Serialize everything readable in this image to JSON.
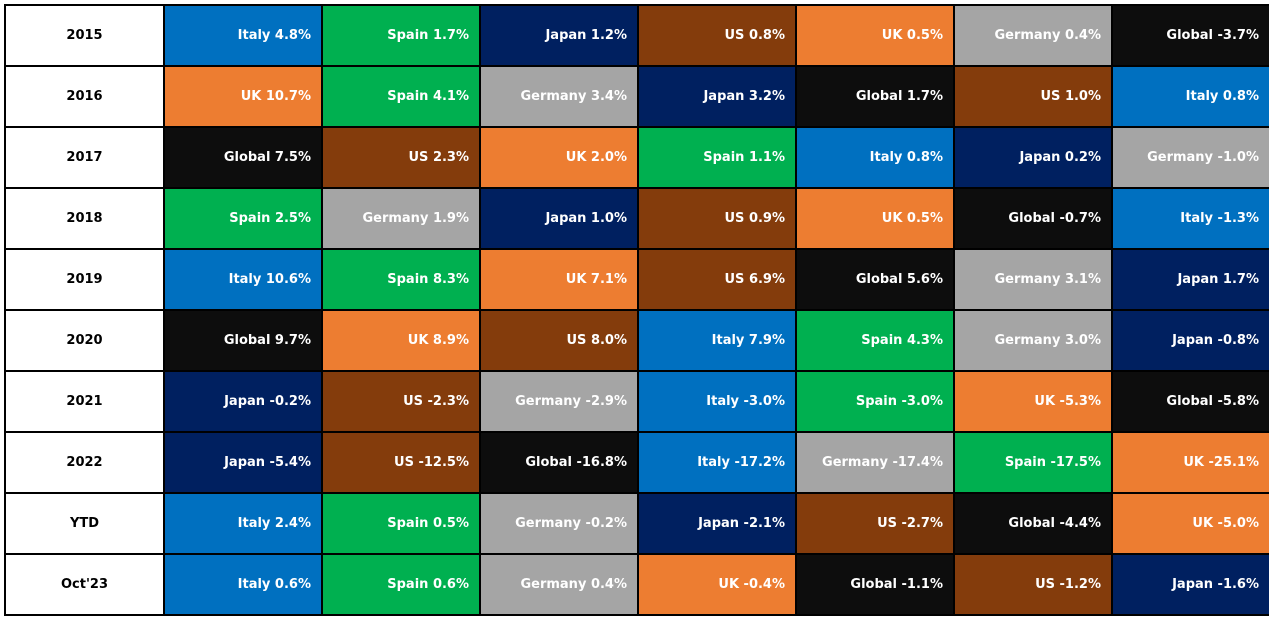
{
  "colors": {
    "Italy": "#0070c0",
    "Spain": "#00b050",
    "Japan": "#002060",
    "US": "#843c0c",
    "UK": "#ed7d31",
    "Germany": "#a5a5a5",
    "Global": "#0d0d0d"
  },
  "chart_data": {
    "type": "table",
    "title": "",
    "rows": [
      {
        "label": "2015",
        "cells": [
          {
            "name": "Italy",
            "value": 4.8,
            "text": "Italy 4.8%"
          },
          {
            "name": "Spain",
            "value": 1.7,
            "text": "Spain 1.7%"
          },
          {
            "name": "Japan",
            "value": 1.2,
            "text": "Japan 1.2%"
          },
          {
            "name": "US",
            "value": 0.8,
            "text": "US 0.8%"
          },
          {
            "name": "UK",
            "value": 0.5,
            "text": "UK 0.5%"
          },
          {
            "name": "Germany",
            "value": 0.4,
            "text": "Germany 0.4%"
          },
          {
            "name": "Global",
            "value": -3.7,
            "text": "Global -3.7%"
          }
        ]
      },
      {
        "label": "2016",
        "cells": [
          {
            "name": "UK",
            "value": 10.7,
            "text": "UK 10.7%"
          },
          {
            "name": "Spain",
            "value": 4.1,
            "text": "Spain 4.1%"
          },
          {
            "name": "Germany",
            "value": 3.4,
            "text": "Germany 3.4%"
          },
          {
            "name": "Japan",
            "value": 3.2,
            "text": "Japan 3.2%"
          },
          {
            "name": "Global",
            "value": 1.7,
            "text": "Global 1.7%"
          },
          {
            "name": "US",
            "value": 1.0,
            "text": "US 1.0%"
          },
          {
            "name": "Italy",
            "value": 0.8,
            "text": "Italy 0.8%"
          }
        ]
      },
      {
        "label": "2017",
        "cells": [
          {
            "name": "Global",
            "value": 7.5,
            "text": "Global 7.5%"
          },
          {
            "name": "US",
            "value": 2.3,
            "text": "US 2.3%"
          },
          {
            "name": "UK",
            "value": 2.0,
            "text": "UK 2.0%"
          },
          {
            "name": "Spain",
            "value": 1.1,
            "text": "Spain 1.1%"
          },
          {
            "name": "Italy",
            "value": 0.8,
            "text": "Italy 0.8%"
          },
          {
            "name": "Japan",
            "value": 0.2,
            "text": "Japan 0.2%"
          },
          {
            "name": "Germany",
            "value": -1.0,
            "text": "Germany -1.0%"
          }
        ]
      },
      {
        "label": "2018",
        "cells": [
          {
            "name": "Spain",
            "value": 2.5,
            "text": "Spain 2.5%"
          },
          {
            "name": "Germany",
            "value": 1.9,
            "text": "Germany 1.9%"
          },
          {
            "name": "Japan",
            "value": 1.0,
            "text": "Japan 1.0%"
          },
          {
            "name": "US",
            "value": 0.9,
            "text": "US 0.9%"
          },
          {
            "name": "UK",
            "value": 0.5,
            "text": "UK 0.5%"
          },
          {
            "name": "Global",
            "value": -0.7,
            "text": "Global -0.7%"
          },
          {
            "name": "Italy",
            "value": -1.3,
            "text": "Italy -1.3%"
          }
        ]
      },
      {
        "label": "2019",
        "cells": [
          {
            "name": "Italy",
            "value": 10.6,
            "text": "Italy 10.6%"
          },
          {
            "name": "Spain",
            "value": 8.3,
            "text": "Spain 8.3%"
          },
          {
            "name": "UK",
            "value": 7.1,
            "text": "UK 7.1%"
          },
          {
            "name": "US",
            "value": 6.9,
            "text": "US 6.9%"
          },
          {
            "name": "Global",
            "value": 5.6,
            "text": "Global 5.6%"
          },
          {
            "name": "Germany",
            "value": 3.1,
            "text": "Germany 3.1%"
          },
          {
            "name": "Japan",
            "value": 1.7,
            "text": "Japan 1.7%"
          }
        ]
      },
      {
        "label": "2020",
        "cells": [
          {
            "name": "Global",
            "value": 9.7,
            "text": "Global 9.7%"
          },
          {
            "name": "UK",
            "value": 8.9,
            "text": "UK 8.9%"
          },
          {
            "name": "US",
            "value": 8.0,
            "text": "US 8.0%"
          },
          {
            "name": "Italy",
            "value": 7.9,
            "text": "Italy 7.9%"
          },
          {
            "name": "Spain",
            "value": 4.3,
            "text": "Spain 4.3%"
          },
          {
            "name": "Germany",
            "value": 3.0,
            "text": "Germany 3.0%"
          },
          {
            "name": "Japan",
            "value": -0.8,
            "text": "Japan -0.8%"
          }
        ]
      },
      {
        "label": "2021",
        "cells": [
          {
            "name": "Japan",
            "value": -0.2,
            "text": "Japan -0.2%"
          },
          {
            "name": "US",
            "value": -2.3,
            "text": "US -2.3%"
          },
          {
            "name": "Germany",
            "value": -2.9,
            "text": "Germany -2.9%"
          },
          {
            "name": "Italy",
            "value": -3.0,
            "text": "Italy -3.0%"
          },
          {
            "name": "Spain",
            "value": -3.0,
            "text": "Spain -3.0%"
          },
          {
            "name": "UK",
            "value": -5.3,
            "text": "UK -5.3%"
          },
          {
            "name": "Global",
            "value": -5.8,
            "text": "Global -5.8%"
          }
        ]
      },
      {
        "label": "2022",
        "cells": [
          {
            "name": "Japan",
            "value": -5.4,
            "text": "Japan -5.4%"
          },
          {
            "name": "US",
            "value": -12.5,
            "text": "US -12.5%"
          },
          {
            "name": "Global",
            "value": -16.8,
            "text": "Global -16.8%"
          },
          {
            "name": "Italy",
            "value": -17.2,
            "text": "Italy -17.2%"
          },
          {
            "name": "Germany",
            "value": -17.4,
            "text": "Germany -17.4%"
          },
          {
            "name": "Spain",
            "value": -17.5,
            "text": "Spain -17.5%"
          },
          {
            "name": "UK",
            "value": -25.1,
            "text": "UK -25.1%"
          }
        ]
      },
      {
        "label": "YTD",
        "cells": [
          {
            "name": "Italy",
            "value": 2.4,
            "text": "Italy 2.4%"
          },
          {
            "name": "Spain",
            "value": 0.5,
            "text": "Spain 0.5%"
          },
          {
            "name": "Germany",
            "value": -0.2,
            "text": "Germany -0.2%"
          },
          {
            "name": "Japan",
            "value": -2.1,
            "text": "Japan -2.1%"
          },
          {
            "name": "US",
            "value": -2.7,
            "text": "US -2.7%"
          },
          {
            "name": "Global",
            "value": -4.4,
            "text": "Global -4.4%"
          },
          {
            "name": "UK",
            "value": -5.0,
            "text": "UK -5.0%"
          }
        ]
      },
      {
        "label": "Oct'23",
        "cells": [
          {
            "name": "Italy",
            "value": 0.6,
            "text": "Italy 0.6%"
          },
          {
            "name": "Spain",
            "value": 0.6,
            "text": "Spain 0.6%"
          },
          {
            "name": "Germany",
            "value": 0.4,
            "text": "Germany 0.4%"
          },
          {
            "name": "UK",
            "value": -0.4,
            "text": "UK -0.4%"
          },
          {
            "name": "Global",
            "value": -1.1,
            "text": "Global -1.1%"
          },
          {
            "name": "US",
            "value": -1.2,
            "text": "US -1.2%"
          },
          {
            "name": "Japan",
            "value": -1.6,
            "text": "Japan -1.6%"
          }
        ]
      }
    ]
  }
}
